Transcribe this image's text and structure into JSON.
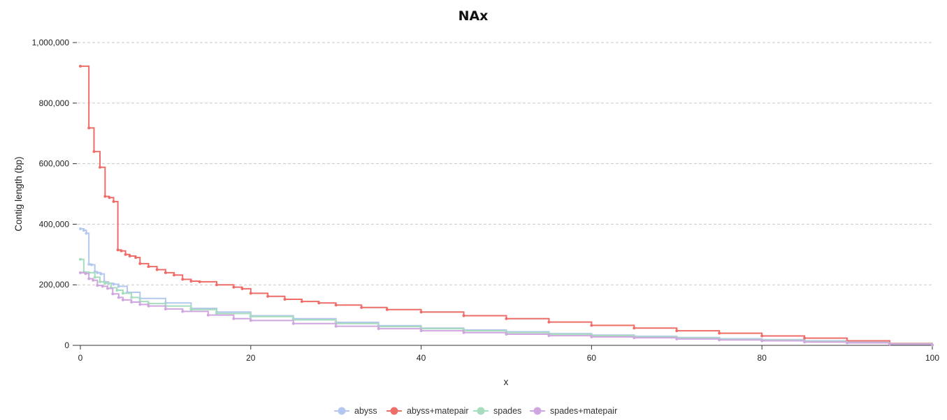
{
  "chart_data": {
    "type": "line",
    "title": "NAx",
    "xlabel": "x",
    "ylabel": "Contig length (bp)",
    "xlim": [
      0,
      100
    ],
    "ylim": [
      0,
      1000000
    ],
    "x_ticks": [
      0,
      20,
      40,
      60,
      80,
      100
    ],
    "x_tick_labels": [
      "0",
      "20",
      "40",
      "60",
      "80",
      "100"
    ],
    "y_ticks": [
      0,
      200000,
      400000,
      600000,
      800000,
      1000000
    ],
    "y_tick_labels": [
      "0",
      "200,000",
      "400,000",
      "600,000",
      "800,000",
      "1,000,000"
    ],
    "grid": true,
    "legend_position": "bottom-center",
    "step": true,
    "series": [
      {
        "name": "abyss",
        "color": "#b4c7ee",
        "x": [
          0,
          0.4,
          0.7,
          1.0,
          1.3,
          1.7,
          2.0,
          2.4,
          2.8,
          3.3,
          3.9,
          4.5,
          5.5,
          7,
          10,
          13,
          16,
          20,
          25,
          30,
          35,
          40,
          45,
          50,
          55,
          60,
          65,
          70,
          75,
          80,
          85,
          90,
          95,
          100
        ],
        "y": [
          385000,
          380000,
          370000,
          268000,
          266000,
          243000,
          240000,
          236000,
          210000,
          205000,
          202000,
          195000,
          175000,
          155000,
          140000,
          122000,
          110000,
          98000,
          88000,
          76000,
          65000,
          57000,
          51000,
          45000,
          39000,
          34000,
          30000,
          26000,
          22000,
          19000,
          15000,
          10000,
          6000,
          1000
        ]
      },
      {
        "name": "abyss+matepair",
        "color": "#ee6d68",
        "x": [
          0,
          1.0,
          1.6,
          2.3,
          2.9,
          3.4,
          3.9,
          4.4,
          4.8,
          5.3,
          5.8,
          6.5,
          7,
          8,
          9,
          10,
          11,
          12,
          13,
          14,
          16,
          18,
          19,
          20,
          22,
          24,
          26,
          28,
          30,
          33,
          36,
          40,
          45,
          50,
          55,
          60,
          65,
          70,
          75,
          80,
          85,
          90,
          95,
          100
        ],
        "y": [
          922000,
          718000,
          640000,
          588000,
          492000,
          488000,
          475000,
          315000,
          312000,
          300000,
          295000,
          290000,
          270000,
          260000,
          250000,
          240000,
          232000,
          218000,
          212000,
          210000,
          200000,
          192000,
          187000,
          172000,
          162000,
          152000,
          145000,
          140000,
          133000,
          125000,
          118000,
          110000,
          98000,
          88000,
          77000,
          66000,
          57000,
          48000,
          40000,
          31000,
          24000,
          15000,
          6000,
          1000
        ]
      },
      {
        "name": "spades",
        "color": "#a6ddbc",
        "x": [
          0,
          0.4,
          1.0,
          1.7,
          2.3,
          2.9,
          3.6,
          4.3,
          5,
          6,
          7,
          8,
          10,
          13,
          16,
          20,
          25,
          30,
          35,
          40,
          45,
          50,
          55,
          60,
          65,
          70,
          75,
          80,
          85,
          90,
          95,
          100
        ],
        "y": [
          284000,
          242000,
          240000,
          225000,
          210000,
          205000,
          190000,
          182000,
          172000,
          158000,
          145000,
          138000,
          130000,
          118000,
          105000,
          95000,
          84000,
          72000,
          62000,
          55000,
          48000,
          42000,
          37000,
          32000,
          28000,
          24000,
          20000,
          17000,
          13000,
          9000,
          5000,
          1000
        ]
      },
      {
        "name": "spades+matepair",
        "color": "#d0a6e0",
        "x": [
          0,
          0.6,
          1.0,
          1.5,
          2.0,
          2.6,
          3.2,
          3.8,
          4.5,
          5,
          6,
          7,
          8,
          10,
          12,
          15,
          18,
          20,
          25,
          30,
          35,
          40,
          45,
          50,
          55,
          60,
          65,
          70,
          75,
          80,
          85,
          90,
          95,
          100
        ],
        "y": [
          240000,
          237000,
          220000,
          215000,
          198000,
          195000,
          188000,
          170000,
          158000,
          150000,
          143000,
          135000,
          130000,
          120000,
          112000,
          100000,
          88000,
          82000,
          72000,
          63000,
          55000,
          48000,
          42000,
          37000,
          32000,
          28000,
          25000,
          21000,
          18000,
          15000,
          11000,
          8000,
          4000,
          1000
        ]
      }
    ]
  }
}
